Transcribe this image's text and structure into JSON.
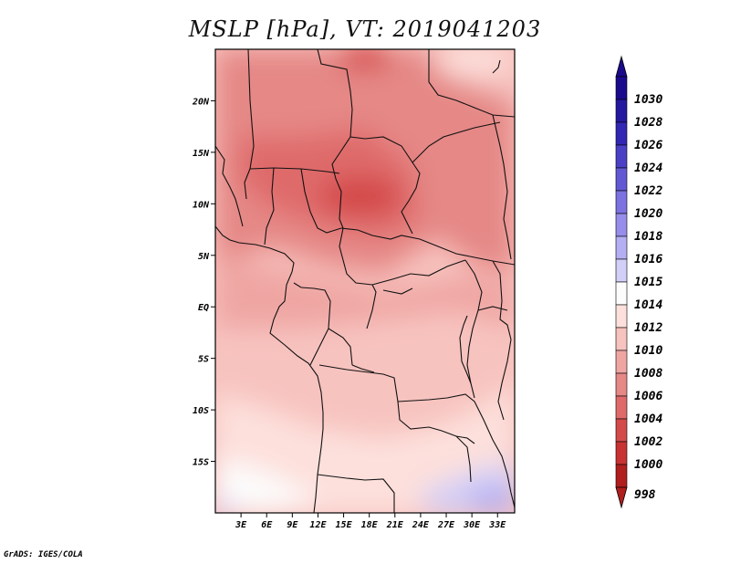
{
  "title": "MSLP [hPa], VT: 2019041203",
  "credit": "GrADS: IGES/COLA",
  "map": {
    "variable": "MSLP",
    "units": "hPa",
    "valid_time": "2019041203",
    "lon_range": [
      0,
      35
    ],
    "lat_range": [
      -20,
      25
    ],
    "lat_ticks": [
      {
        "label": "20N",
        "value": 20
      },
      {
        "label": "15N",
        "value": 15
      },
      {
        "label": "10N",
        "value": 10
      },
      {
        "label": "5N",
        "value": 5
      },
      {
        "label": "EQ",
        "value": 0
      },
      {
        "label": "5S",
        "value": -5
      },
      {
        "label": "10S",
        "value": -10
      },
      {
        "label": "15S",
        "value": -15
      }
    ],
    "lon_ticks": [
      {
        "label": "3E",
        "value": 3
      },
      {
        "label": "6E",
        "value": 6
      },
      {
        "label": "9E",
        "value": 9
      },
      {
        "label": "12E",
        "value": 12
      },
      {
        "label": "15E",
        "value": 15
      },
      {
        "label": "18E",
        "value": 18
      },
      {
        "label": "21E",
        "value": 21
      },
      {
        "label": "24E",
        "value": 24
      },
      {
        "label": "27E",
        "value": 27
      },
      {
        "label": "30E",
        "value": 30
      },
      {
        "label": "33E",
        "value": 33
      }
    ]
  },
  "colorbar": {
    "levels": [
      {
        "label": "1030",
        "color": "#1a0a8c"
      },
      {
        "label": "1028",
        "color": "#2418a0"
      },
      {
        "label": "1026",
        "color": "#3226b4"
      },
      {
        "label": "1024",
        "color": "#4a40c6"
      },
      {
        "label": "1022",
        "color": "#6358d4"
      },
      {
        "label": "1020",
        "color": "#7c72e0"
      },
      {
        "label": "1018",
        "color": "#968eea"
      },
      {
        "label": "1016",
        "color": "#b4aef2"
      },
      {
        "label": "1015",
        "color": "#d2cff8"
      },
      {
        "label": "1014",
        "color": "#fcfcfc"
      },
      {
        "label": "1012",
        "color": "#fde0dc"
      },
      {
        "label": "1010",
        "color": "#f7c3bf"
      },
      {
        "label": "1008",
        "color": "#efa6a3"
      },
      {
        "label": "1006",
        "color": "#e58886"
      },
      {
        "label": "1004",
        "color": "#df6a6a"
      },
      {
        "label": "1002",
        "color": "#d44a4a"
      },
      {
        "label": "1000",
        "color": "#c83232"
      },
      {
        "label": "998",
        "color": "#b01e1e"
      }
    ]
  }
}
